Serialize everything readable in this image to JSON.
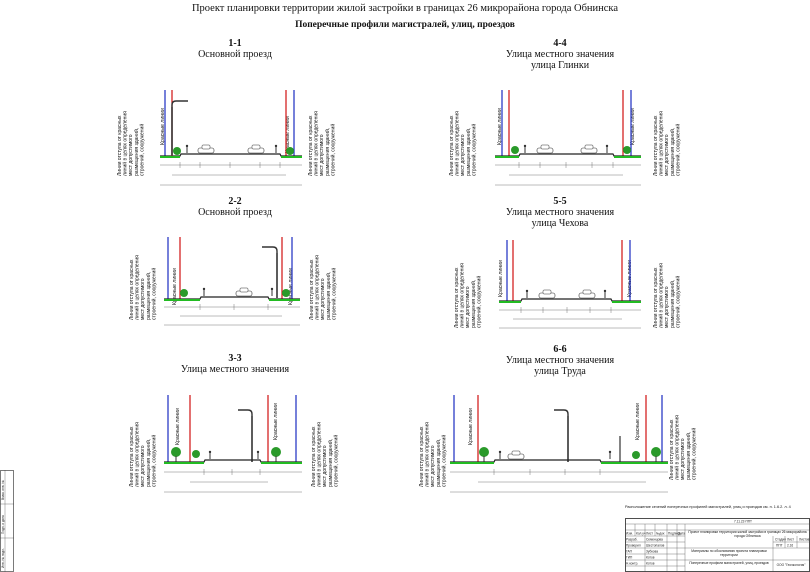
{
  "document": {
    "title": "Проект планировки территории жилой застройки в границах 26 микрорайона города Обнинска",
    "subtitle": "Поперечные профили магистралей, улиц, проездов"
  },
  "labels": {
    "setback": "Линии отступа от красных\nлиний в целях определения\nмест допустимого\nразмещения зданий,\nстроений, сооружений",
    "red_lines": "Красные линии"
  },
  "profiles": [
    {
      "id": "1-1",
      "name": "Основной проезд",
      "name2": ""
    },
    {
      "id": "4-4",
      "name": "Улица местного значения",
      "name2": "улица Глинки"
    },
    {
      "id": "2-2",
      "name": "Основной проезд",
      "name2": ""
    },
    {
      "id": "5-5",
      "name": "Улица местного значения",
      "name2": "улица Чехова"
    },
    {
      "id": "3-3",
      "name": "Улица местного значения",
      "name2": ""
    },
    {
      "id": "6-6",
      "name": "Улица местного значения",
      "name2": "улица Труда"
    }
  ],
  "colors": {
    "red_line": "#d01010",
    "setback_line": "#1a2cc0",
    "grass": "#22bb22",
    "tree": "#2a9a2a"
  },
  "titleblock": {
    "note": "Расположение сечений поперечных профилей магистралей, улиц и проездов см. п. 1.6.2. л. 4",
    "code": "7.11.22-ППТ",
    "rev_headers": [
      "Изм.",
      "Кол.уч",
      "Лист",
      "№док",
      "Подпись",
      "Дата"
    ],
    "roles": [
      "Разраб.",
      "Проверил",
      "ГАП",
      "ГИП",
      "Н.контр."
    ],
    "names": [
      "Семенцова",
      "Шестопалов",
      "Зубкова",
      "Котов",
      "Котов"
    ],
    "project": "Проект планировки территории жилой застройки в границах 26 микрорайона города Обнинска",
    "materials": "Материалы по обоснованию проекта планировки территории",
    "sheet_title": "Поперечные профили магистралей, улиц, проездов",
    "stage_headers": [
      "Стадия",
      "Лист",
      "Листов"
    ],
    "stage": "ППТ",
    "sheet": "2.16",
    "company": "ООО \"Геоэкология\""
  },
  "side_stamp": [
    "Взам. инв. №",
    "Подп. и дата",
    "Инв. № подл."
  ]
}
